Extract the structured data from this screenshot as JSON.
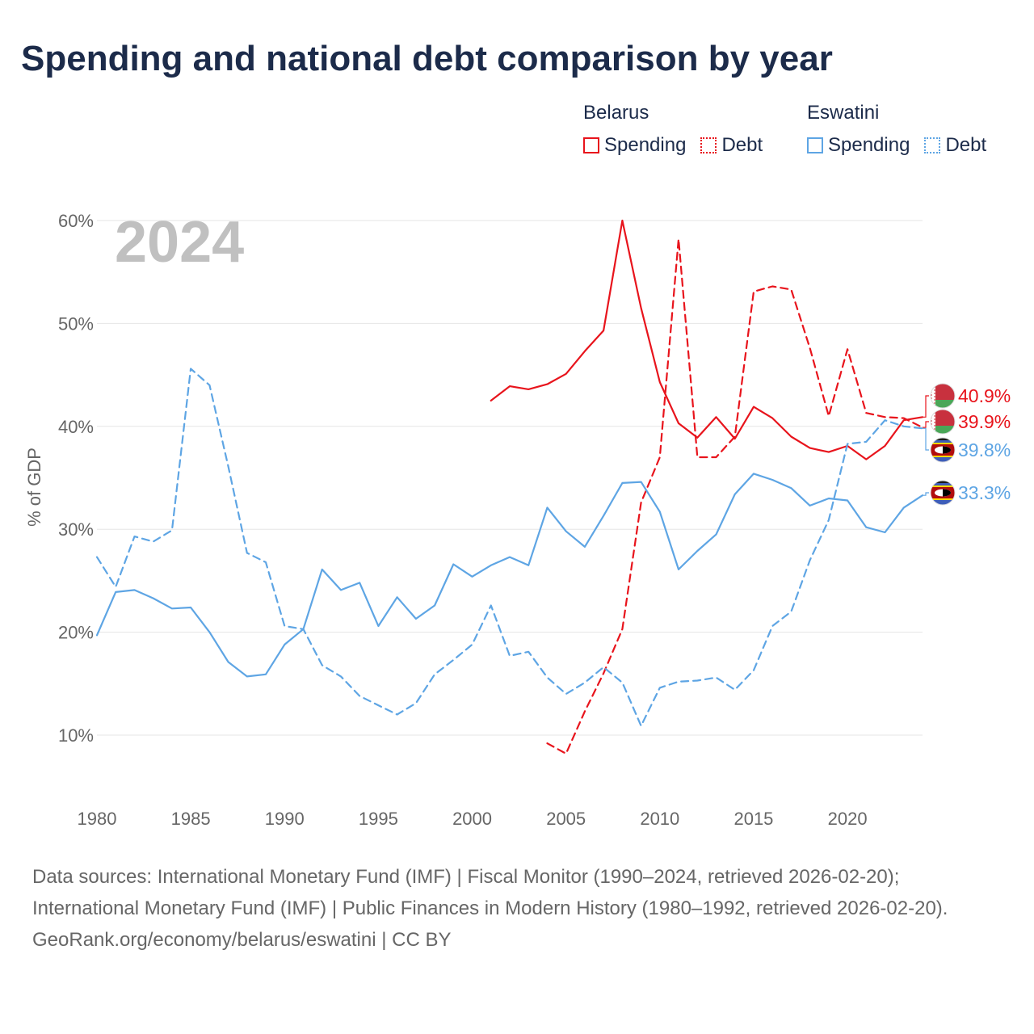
{
  "title": "Spending and national debt comparison by year",
  "legend": {
    "groups": [
      {
        "name": "Belarus",
        "color": "#e8141c",
        "items": [
          "Spending",
          "Debt"
        ]
      },
      {
        "name": "Eswatini",
        "color": "#5ea5e4",
        "items": [
          "Spending",
          "Debt"
        ]
      }
    ]
  },
  "year_watermark": "2024",
  "footer": {
    "sources": "Data sources: International Monetary Fund (IMF) | Fiscal Monitor (1990–2024, retrieved 2026-02-20); International Monetary Fund (IMF) | Public Finances in Modern History (1980–1992, retrieved 2026-02-20).",
    "credit": "GeoRank.org/economy/belarus/eswatini | CC BY"
  },
  "chart_data": {
    "type": "line",
    "title": "Spending and national debt comparison by year",
    "xlabel": "",
    "ylabel": "% of GDP",
    "xlim": [
      1980,
      2024
    ],
    "ylim": [
      3,
      60
    ],
    "x_ticks": [
      1980,
      1985,
      1990,
      1995,
      2000,
      2005,
      2010,
      2015,
      2020
    ],
    "y_ticks": [
      10,
      20,
      30,
      40,
      50,
      60
    ],
    "y_tick_labels": [
      "10%",
      "20%",
      "30%",
      "40%",
      "50%",
      "60%"
    ],
    "grid": true,
    "series": [
      {
        "name": "Belarus Spending",
        "country": "Belarus",
        "metric": "Spending",
        "style": "solid",
        "color": "#e8141c",
        "x": [
          2001,
          2002,
          2003,
          2004,
          2005,
          2006,
          2007,
          2008,
          2009,
          2010,
          2011,
          2012,
          2013,
          2014,
          2015,
          2016,
          2017,
          2018,
          2019,
          2020,
          2021,
          2022,
          2023,
          2024
        ],
        "values": [
          42.5,
          43.9,
          43.6,
          44.1,
          45.1,
          47.3,
          49.3,
          60.0,
          51.5,
          44.3,
          40.3,
          38.9,
          40.9,
          38.8,
          41.9,
          40.8,
          39.0,
          37.9,
          37.5,
          38.1,
          36.8,
          38.1,
          40.6,
          40.9
        ],
        "end_label": "40.9%"
      },
      {
        "name": "Belarus Debt",
        "country": "Belarus",
        "metric": "Debt",
        "style": "dashed",
        "color": "#e8141c",
        "x": [
          2004,
          2005,
          2006,
          2007,
          2008,
          2009,
          2010,
          2011,
          2012,
          2013,
          2014,
          2015,
          2016,
          2017,
          2018,
          2019,
          2020,
          2021,
          2022,
          2023,
          2024
        ],
        "values": [
          9.2,
          8.2,
          12.3,
          16.0,
          20.3,
          32.6,
          37.0,
          58.2,
          37.0,
          37.0,
          39.0,
          53.1,
          53.6,
          53.3,
          47.6,
          41.0,
          47.5,
          41.3,
          40.9,
          40.8,
          39.9
        ],
        "end_label": "39.9%"
      },
      {
        "name": "Eswatini Spending",
        "country": "Eswatini",
        "metric": "Spending",
        "style": "solid",
        "color": "#5ea5e4",
        "x": [
          1980,
          1981,
          1982,
          1983,
          1984,
          1985,
          1986,
          1987,
          1988,
          1989,
          1990,
          1991,
          1992,
          1993,
          1994,
          1995,
          1996,
          1997,
          1998,
          1999,
          2000,
          2001,
          2002,
          2003,
          2004,
          2005,
          2006,
          2007,
          2008,
          2009,
          2010,
          2011,
          2012,
          2013,
          2014,
          2015,
          2016,
          2017,
          2018,
          2019,
          2020,
          2021,
          2022,
          2023,
          2024
        ],
        "values": [
          19.7,
          23.9,
          24.1,
          23.3,
          22.3,
          22.4,
          20.0,
          17.1,
          15.7,
          15.9,
          18.8,
          20.3,
          26.1,
          24.1,
          24.8,
          20.6,
          23.4,
          21.3,
          22.6,
          26.6,
          25.4,
          26.5,
          27.3,
          26.5,
          32.1,
          29.8,
          28.3,
          31.3,
          34.5,
          34.6,
          31.7,
          26.1,
          27.9,
          29.5,
          33.4,
          35.4,
          34.8,
          34.0,
          32.3,
          33.0,
          32.8,
          30.2,
          29.7,
          32.1,
          33.3
        ],
        "end_label": "33.3%"
      },
      {
        "name": "Eswatini Debt",
        "country": "Eswatini",
        "metric": "Debt",
        "style": "dashed",
        "color": "#5ea5e4",
        "x": [
          1980,
          1981,
          1982,
          1983,
          1984,
          1985,
          1986,
          1987,
          1988,
          1989,
          1990,
          1991,
          1992,
          1993,
          1994,
          1995,
          1996,
          1997,
          1998,
          1999,
          2000,
          2001,
          2002,
          2003,
          2004,
          2005,
          2006,
          2007,
          2008,
          2009,
          2010,
          2011,
          2012,
          2013,
          2014,
          2015,
          2016,
          2017,
          2018,
          2019,
          2020,
          2021,
          2022,
          2023,
          2024
        ],
        "values": [
          27.3,
          24.4,
          29.3,
          28.8,
          29.9,
          45.6,
          44.0,
          36.1,
          27.7,
          26.8,
          20.6,
          20.3,
          16.8,
          15.7,
          13.8,
          12.9,
          12.0,
          13.1,
          15.9,
          17.3,
          18.8,
          22.6,
          17.7,
          18.1,
          15.6,
          14.0,
          15.1,
          16.6,
          15.1,
          10.9,
          14.6,
          15.2,
          15.3,
          15.6,
          14.4,
          16.3,
          20.6,
          22.0,
          27.0,
          30.9,
          38.3,
          38.5,
          40.6,
          40.0,
          39.8
        ],
        "end_label": "39.8%"
      }
    ]
  }
}
